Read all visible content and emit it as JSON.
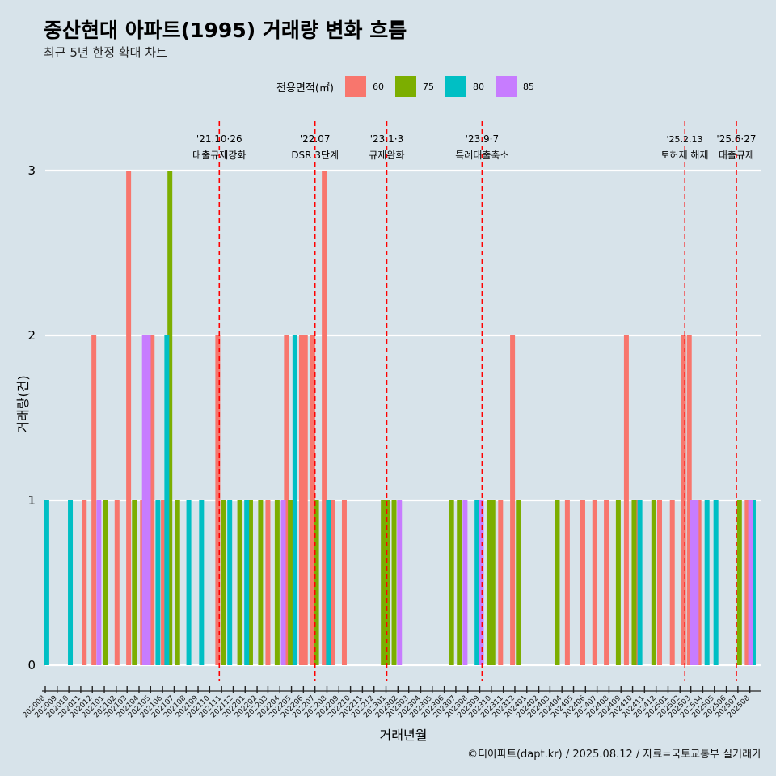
{
  "header": {
    "title": "중산현대 아파트(1995) 거래량 변화 흐름",
    "subtitle": "최근 5년 한정 확대 차트"
  },
  "legend": {
    "title": "전용면적(㎡)",
    "items": [
      {
        "label": "60",
        "color": "#f8766d"
      },
      {
        "label": "75",
        "color": "#7cae00"
      },
      {
        "label": "80",
        "color": "#00bfc4"
      },
      {
        "label": "85",
        "color": "#c77cff"
      }
    ]
  },
  "caption": "©디아파트(dapt.kr) / 2025.08.12 / 자료=국토교통부 실거래가",
  "chart_data": {
    "type": "bar",
    "xlabel": "거래년월",
    "ylabel": "거래량(건)",
    "ylim": [
      0,
      3
    ],
    "yticks": [
      0,
      1,
      2,
      3
    ],
    "x_start": "2020-08-01",
    "x_end": "2025-08-31",
    "month_ticks": [
      "202008",
      "202009",
      "202010",
      "202011",
      "202012",
      "202101",
      "202102",
      "202103",
      "202104",
      "202105",
      "202106",
      "202107",
      "202108",
      "202109",
      "202110",
      "202111",
      "202112",
      "202201",
      "202202",
      "202203",
      "202204",
      "202205",
      "202206",
      "202207",
      "202208",
      "202209",
      "202210",
      "202211",
      "202212",
      "202301",
      "202302",
      "202303",
      "202304",
      "202305",
      "202306",
      "202307",
      "202308",
      "202309",
      "202310",
      "202311",
      "202312",
      "202401",
      "202402",
      "202403",
      "202404",
      "202405",
      "202406",
      "202407",
      "202408",
      "202409",
      "202410",
      "202411",
      "202412",
      "202501",
      "202502",
      "202503",
      "202504",
      "202505",
      "202506",
      "202507",
      "202508"
    ],
    "series": [
      {
        "name": "60",
        "color": "#f8766d",
        "points": [
          {
            "x": "2020-11-10",
            "y": 1
          },
          {
            "x": "2020-12-05",
            "y": 2
          },
          {
            "x": "2021-02-03",
            "y": 1
          },
          {
            "x": "2021-03-05",
            "y": 3
          },
          {
            "x": "2021-04-10",
            "y": 1
          },
          {
            "x": "2021-05-05",
            "y": 2
          },
          {
            "x": "2021-06-03",
            "y": 1
          },
          {
            "x": "2021-10-22",
            "y": 2
          },
          {
            "x": "2022-03-01",
            "y": 1
          },
          {
            "x": "2022-04-18",
            "y": 2
          },
          {
            "x": "2022-05-27",
            "y": 2
          },
          {
            "x": "2022-06-06",
            "y": 2
          },
          {
            "x": "2022-06-25",
            "y": 2
          },
          {
            "x": "2022-07-25",
            "y": 3
          },
          {
            "x": "2022-08-15",
            "y": 1
          },
          {
            "x": "2022-09-15",
            "y": 1
          },
          {
            "x": "2023-10-25",
            "y": 1
          },
          {
            "x": "2023-11-25",
            "y": 2
          },
          {
            "x": "2024-04-15",
            "y": 1
          },
          {
            "x": "2024-05-25",
            "y": 1
          },
          {
            "x": "2024-06-25",
            "y": 1
          },
          {
            "x": "2024-07-25",
            "y": 1
          },
          {
            "x": "2024-09-15",
            "y": 2
          },
          {
            "x": "2024-10-12",
            "y": 1
          },
          {
            "x": "2024-12-10",
            "y": 1
          },
          {
            "x": "2025-01-12",
            "y": 1
          },
          {
            "x": "2025-02-10",
            "y": 2
          },
          {
            "x": "2025-02-25",
            "y": 2
          },
          {
            "x": "2025-03-22",
            "y": 1
          },
          {
            "x": "2025-07-25",
            "y": 1
          }
        ]
      },
      {
        "name": "75",
        "color": "#7cae00",
        "points": [
          {
            "x": "2021-01-05",
            "y": 1
          },
          {
            "x": "2021-03-20",
            "y": 1
          },
          {
            "x": "2021-06-20",
            "y": 3
          },
          {
            "x": "2021-07-10",
            "y": 1
          },
          {
            "x": "2021-11-05",
            "y": 1
          },
          {
            "x": "2021-12-18",
            "y": 1
          },
          {
            "x": "2022-01-15",
            "y": 1
          },
          {
            "x": "2022-02-10",
            "y": 1
          },
          {
            "x": "2022-03-25",
            "y": 1
          },
          {
            "x": "2022-04-28",
            "y": 1
          },
          {
            "x": "2022-07-05",
            "y": 1
          },
          {
            "x": "2022-12-25",
            "y": 1
          },
          {
            "x": "2023-01-05",
            "y": 1
          },
          {
            "x": "2023-01-22",
            "y": 1
          },
          {
            "x": "2023-06-20",
            "y": 1
          },
          {
            "x": "2023-07-10",
            "y": 1
          },
          {
            "x": "2023-09-25",
            "y": 1
          },
          {
            "x": "2023-10-05",
            "y": 1
          },
          {
            "x": "2023-12-10",
            "y": 1
          },
          {
            "x": "2024-03-20",
            "y": 1
          },
          {
            "x": "2024-08-25",
            "y": 1
          },
          {
            "x": "2024-10-05",
            "y": 1
          },
          {
            "x": "2024-11-25",
            "y": 1
          },
          {
            "x": "2025-07-05",
            "y": 1
          }
        ]
      },
      {
        "name": "80",
        "color": "#00bfc4",
        "points": [
          {
            "x": "2020-08-05",
            "y": 1
          },
          {
            "x": "2020-10-05",
            "y": 1
          },
          {
            "x": "2021-05-20",
            "y": 1
          },
          {
            "x": "2021-06-12",
            "y": 2
          },
          {
            "x": "2021-08-08",
            "y": 1
          },
          {
            "x": "2021-09-10",
            "y": 1
          },
          {
            "x": "2021-11-22",
            "y": 1
          },
          {
            "x": "2022-01-05",
            "y": 1
          },
          {
            "x": "2022-05-10",
            "y": 2
          },
          {
            "x": "2022-08-05",
            "y": 1
          },
          {
            "x": "2023-08-25",
            "y": 1
          },
          {
            "x": "2024-10-20",
            "y": 1
          },
          {
            "x": "2025-04-12",
            "y": 1
          },
          {
            "x": "2025-05-05",
            "y": 1
          },
          {
            "x": "2025-08-10",
            "y": 1
          }
        ]
      },
      {
        "name": "85",
        "color": "#c77cff",
        "points": [
          {
            "x": "2020-12-18",
            "y": 1
          },
          {
            "x": "2021-04-15",
            "y": 2
          },
          {
            "x": "2021-04-25",
            "y": 2
          },
          {
            "x": "2022-04-10",
            "y": 1
          },
          {
            "x": "2023-02-05",
            "y": 1
          },
          {
            "x": "2023-07-25",
            "y": 1
          },
          {
            "x": "2023-09-05",
            "y": 1
          },
          {
            "x": "2025-03-05",
            "y": 1
          },
          {
            "x": "2025-03-15",
            "y": 1
          },
          {
            "x": "2025-08-03",
            "y": 1
          }
        ]
      }
    ],
    "events": [
      {
        "date": "2021-10-26",
        "label1": "'21.10·26",
        "label2": "대출규제강화"
      },
      {
        "date": "2022-07-01",
        "label1": "'22.07",
        "label2": "DSR 3단계"
      },
      {
        "date": "2023-01-03",
        "label1": "'23.1·3",
        "label2": "규제완화"
      },
      {
        "date": "2023-09-07",
        "label1": "'23.9·7",
        "label2": "특례대출축소"
      },
      {
        "date": "2025-02-13",
        "label1": "'25.2.13",
        "label2": "토허제 해제"
      },
      {
        "date": "2025-06-27",
        "label1": "'25.6·27",
        "label2": "대출규제"
      }
    ]
  }
}
